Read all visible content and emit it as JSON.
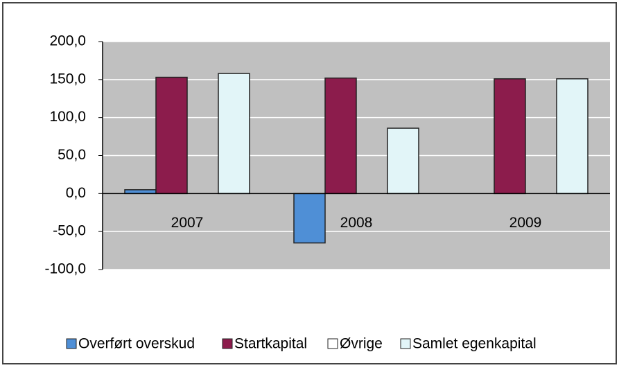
{
  "chart_data": {
    "type": "bar",
    "categories": [
      "2007",
      "2008",
      "2009"
    ],
    "series": [
      {
        "name": "Overført overskud",
        "color": "#4f8fd6",
        "values": [
          5,
          -65,
          0
        ]
      },
      {
        "name": "Startkapital",
        "color": "#8c1c4c",
        "values": [
          153,
          152,
          151
        ]
      },
      {
        "name": "Øvrige",
        "color": "#ffffff",
        "values": [
          0,
          0,
          0
        ]
      },
      {
        "name": "Samlet egenkapital",
        "color": "#e2f5f8",
        "values": [
          158,
          86,
          151
        ]
      }
    ],
    "ylim": [
      -100,
      200
    ],
    "yticks": [
      {
        "value": -100,
        "label": "-100,0"
      },
      {
        "value": -50,
        "label": "-50,0"
      },
      {
        "value": 0,
        "label": "0,0"
      },
      {
        "value": 50,
        "label": "50,0"
      },
      {
        "value": 100,
        "label": "100,0"
      },
      {
        "value": 150,
        "label": "150,0"
      },
      {
        "value": 200,
        "label": "200,0"
      }
    ],
    "grid": true,
    "legend": "bottom"
  }
}
